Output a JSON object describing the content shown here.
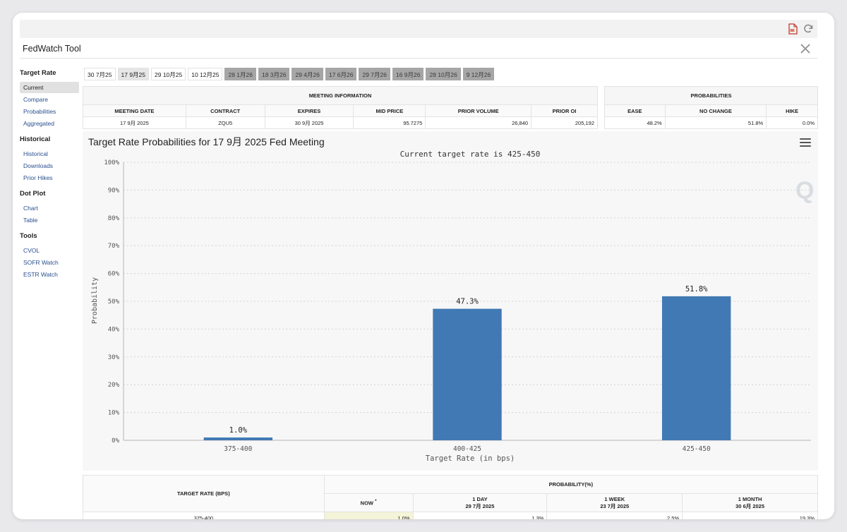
{
  "window": {
    "title": "FedWatch Tool"
  },
  "icons": {
    "export": "export-pdf-icon",
    "refresh": "refresh-icon",
    "close": "x-icon",
    "menu": "hamburger-menu-icon",
    "watermark": "q-logo-icon"
  },
  "sidebar": {
    "groups": [
      {
        "heading": "Target Rate",
        "items": [
          "Current",
          "Compare",
          "Probabilities",
          "Aggregated"
        ]
      },
      {
        "heading": "Historical",
        "items": [
          "Historical",
          "Downloads",
          "Prior Hikes"
        ]
      },
      {
        "heading": "Dot Plot",
        "items": [
          "Chart",
          "Table"
        ]
      },
      {
        "heading": "Tools",
        "items": [
          "CVOL",
          "SOFR Watch",
          "ESTR Watch"
        ]
      }
    ],
    "active_item": "Current"
  },
  "tabs": [
    "30 7月25",
    "17 9月25",
    "29 10月25",
    "10 12月25",
    "28 1月26",
    "18 3月26",
    "29 4月26",
    "17 6月26",
    "29 7月26",
    "16 9月26",
    "28 10月26",
    "9 12月26"
  ],
  "active_tab": "17 9月25",
  "meeting_info": {
    "caption": "MEETING INFORMATION",
    "headers": [
      "MEETING DATE",
      "CONTRACT",
      "EXPIRES",
      "MID PRICE",
      "PRIOR VOLUME",
      "PRIOR OI"
    ],
    "row": [
      "17 9月 2025",
      "ZQU5",
      "30 9月 2025",
      "95.7275",
      "26,840",
      "205,192"
    ]
  },
  "probabilities": {
    "caption": "PROBABILITIES",
    "headers": [
      "EASE",
      "NO CHANGE",
      "HIKE"
    ],
    "row": [
      "48.2%",
      "51.8%",
      "0.0%"
    ]
  },
  "chart_data": {
    "type": "bar",
    "title": "Target Rate Probabilities for 17 9月 2025 Fed Meeting",
    "subtitle": "Current target rate is 425-450",
    "categories": [
      "375-400",
      "400-425",
      "425-450"
    ],
    "values": [
      1.0,
      47.3,
      51.8
    ],
    "value_labels": [
      "1.0%",
      "47.3%",
      "51.8%"
    ],
    "xlabel": "Target Rate (in bps)",
    "ylabel": "Probability",
    "ylim": [
      0,
      100
    ],
    "yticks": [
      "0%",
      "10%",
      "20%",
      "30%",
      "40%",
      "50%",
      "60%",
      "70%",
      "80%",
      "90%",
      "100%"
    ],
    "grid": true,
    "color": "#4179b4"
  },
  "bottom_table": {
    "rate_header": "TARGET RATE (BPS)",
    "prob_header": "PROBABILITY(%)",
    "cols": [
      {
        "line1": "NOW",
        "line2": ""
      },
      {
        "line1": "1 DAY",
        "line2": "29 7月 2025"
      },
      {
        "line1": "1 WEEK",
        "line2": "23 7月 2025"
      },
      {
        "line1": "1 MONTH",
        "line2": "30 6月 2025"
      }
    ],
    "now_mark": "*",
    "rows": [
      {
        "rate": "375-400",
        "values": [
          "1.0%",
          "1.3%",
          "2.5%",
          "19.3%"
        ]
      }
    ]
  }
}
